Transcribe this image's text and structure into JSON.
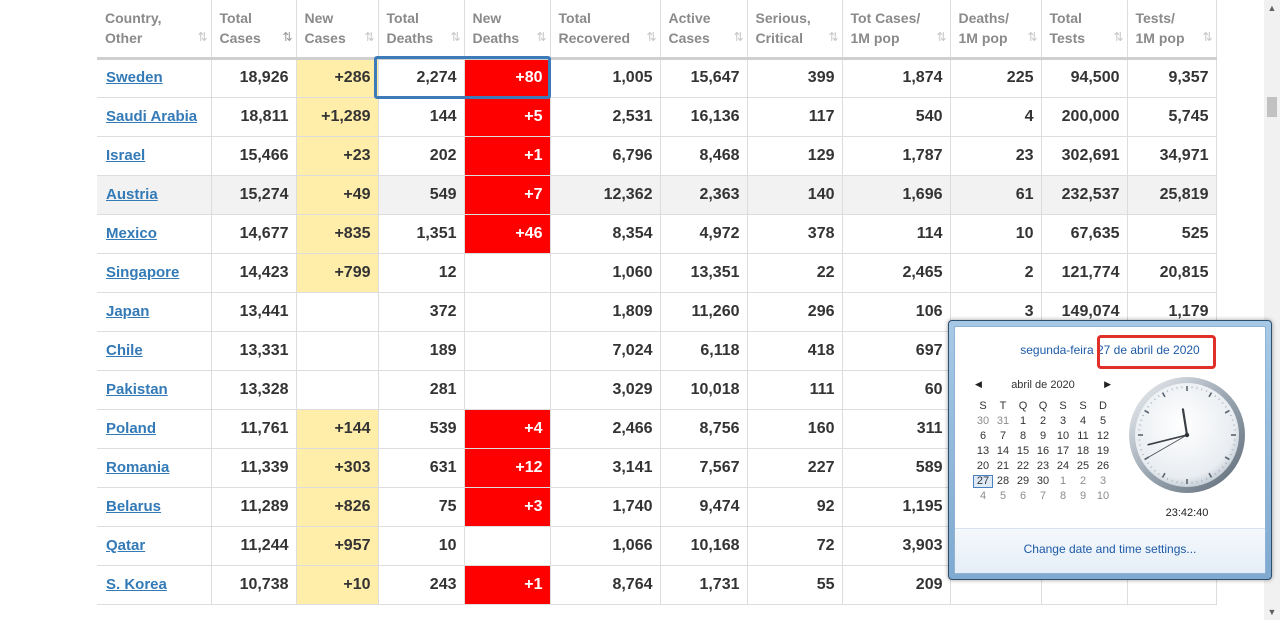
{
  "table": {
    "headers": [
      {
        "line1": "Country,",
        "line2": "Other",
        "sort": "⇅",
        "active": false
      },
      {
        "line1": "Total",
        "line2": "Cases",
        "sort": "⇅",
        "active": true
      },
      {
        "line1": "New",
        "line2": "Cases",
        "sort": "⇅",
        "active": false
      },
      {
        "line1": "Total",
        "line2": "Deaths",
        "sort": "⇅",
        "active": false
      },
      {
        "line1": "New",
        "line2": "Deaths",
        "sort": "⇅",
        "active": false
      },
      {
        "line1": "Total",
        "line2": "Recovered",
        "sort": "⇅",
        "active": false
      },
      {
        "line1": "Active",
        "line2": "Cases",
        "sort": "⇅",
        "active": false
      },
      {
        "line1": "Serious,",
        "line2": "Critical",
        "sort": "⇅",
        "active": false
      },
      {
        "line1": "Tot Cases/",
        "line2": "1M pop",
        "sort": "⇅",
        "active": false
      },
      {
        "line1": "Deaths/",
        "line2": "1M pop",
        "sort": "⇅",
        "active": false
      },
      {
        "line1": "Total",
        "line2": "Tests",
        "sort": "⇅",
        "active": false
      },
      {
        "line1": "Tests/",
        "line2": "1M pop",
        "sort": "⇅",
        "active": false
      }
    ],
    "rows": [
      {
        "country": "Sweden",
        "total_cases": "18,926",
        "new_cases": "+286",
        "total_deaths": "2,274",
        "new_deaths": "+80",
        "total_recovered": "1,005",
        "active_cases": "15,647",
        "serious": "399",
        "cases_per_1m": "1,874",
        "deaths_per_1m": "225",
        "total_tests": "94,500",
        "tests_per_1m": "9,357"
      },
      {
        "country": "Saudi Arabia",
        "total_cases": "18,811",
        "new_cases": "+1,289",
        "total_deaths": "144",
        "new_deaths": "+5",
        "total_recovered": "2,531",
        "active_cases": "16,136",
        "serious": "117",
        "cases_per_1m": "540",
        "deaths_per_1m": "4",
        "total_tests": "200,000",
        "tests_per_1m": "5,745"
      },
      {
        "country": "Israel",
        "total_cases": "15,466",
        "new_cases": "+23",
        "total_deaths": "202",
        "new_deaths": "+1",
        "total_recovered": "6,796",
        "active_cases": "8,468",
        "serious": "129",
        "cases_per_1m": "1,787",
        "deaths_per_1m": "23",
        "total_tests": "302,691",
        "tests_per_1m": "34,971"
      },
      {
        "country": "Austria",
        "total_cases": "15,274",
        "new_cases": "+49",
        "total_deaths": "549",
        "new_deaths": "+7",
        "total_recovered": "12,362",
        "active_cases": "2,363",
        "serious": "140",
        "cases_per_1m": "1,696",
        "deaths_per_1m": "61",
        "total_tests": "232,537",
        "tests_per_1m": "25,819"
      },
      {
        "country": "Mexico",
        "total_cases": "14,677",
        "new_cases": "+835",
        "total_deaths": "1,351",
        "new_deaths": "+46",
        "total_recovered": "8,354",
        "active_cases": "4,972",
        "serious": "378",
        "cases_per_1m": "114",
        "deaths_per_1m": "10",
        "total_tests": "67,635",
        "tests_per_1m": "525"
      },
      {
        "country": "Singapore",
        "total_cases": "14,423",
        "new_cases": "+799",
        "total_deaths": "12",
        "new_deaths": "",
        "total_recovered": "1,060",
        "active_cases": "13,351",
        "serious": "22",
        "cases_per_1m": "2,465",
        "deaths_per_1m": "2",
        "total_tests": "121,774",
        "tests_per_1m": "20,815"
      },
      {
        "country": "Japan",
        "total_cases": "13,441",
        "new_cases": "",
        "total_deaths": "372",
        "new_deaths": "",
        "total_recovered": "1,809",
        "active_cases": "11,260",
        "serious": "296",
        "cases_per_1m": "106",
        "deaths_per_1m": "3",
        "total_tests": "149,074",
        "tests_per_1m": "1,179"
      },
      {
        "country": "Chile",
        "total_cases": "13,331",
        "new_cases": "",
        "total_deaths": "189",
        "new_deaths": "",
        "total_recovered": "7,024",
        "active_cases": "6,118",
        "serious": "418",
        "cases_per_1m": "697",
        "deaths_per_1m": "",
        "total_tests": "",
        "tests_per_1m": ""
      },
      {
        "country": "Pakistan",
        "total_cases": "13,328",
        "new_cases": "",
        "total_deaths": "281",
        "new_deaths": "",
        "total_recovered": "3,029",
        "active_cases": "10,018",
        "serious": "111",
        "cases_per_1m": "60",
        "deaths_per_1m": "",
        "total_tests": "",
        "tests_per_1m": ""
      },
      {
        "country": "Poland",
        "total_cases": "11,761",
        "new_cases": "+144",
        "total_deaths": "539",
        "new_deaths": "+4",
        "total_recovered": "2,466",
        "active_cases": "8,756",
        "serious": "160",
        "cases_per_1m": "311",
        "deaths_per_1m": "",
        "total_tests": "",
        "tests_per_1m": ""
      },
      {
        "country": "Romania",
        "total_cases": "11,339",
        "new_cases": "+303",
        "total_deaths": "631",
        "new_deaths": "+12",
        "total_recovered": "3,141",
        "active_cases": "7,567",
        "serious": "227",
        "cases_per_1m": "589",
        "deaths_per_1m": "",
        "total_tests": "",
        "tests_per_1m": ""
      },
      {
        "country": "Belarus",
        "total_cases": "11,289",
        "new_cases": "+826",
        "total_deaths": "75",
        "new_deaths": "+3",
        "total_recovered": "1,740",
        "active_cases": "9,474",
        "serious": "92",
        "cases_per_1m": "1,195",
        "deaths_per_1m": "",
        "total_tests": "",
        "tests_per_1m": ""
      },
      {
        "country": "Qatar",
        "total_cases": "11,244",
        "new_cases": "+957",
        "total_deaths": "10",
        "new_deaths": "",
        "total_recovered": "1,066",
        "active_cases": "10,168",
        "serious": "72",
        "cases_per_1m": "3,903",
        "deaths_per_1m": "",
        "total_tests": "",
        "tests_per_1m": ""
      },
      {
        "country": "S. Korea",
        "total_cases": "10,738",
        "new_cases": "+10",
        "total_deaths": "243",
        "new_deaths": "+1",
        "total_recovered": "8,764",
        "active_cases": "1,731",
        "serious": "55",
        "cases_per_1m": "209",
        "deaths_per_1m": "",
        "total_tests": "",
        "tests_per_1m": ""
      }
    ]
  },
  "colors": {
    "new_cases_bg": "#ffeeaa",
    "new_deaths_bg": "#ff0000",
    "link": "#337ab7",
    "highlight_blue": "#3d7ab8",
    "highlight_red": "#e0302a"
  },
  "flyout": {
    "weekday": "segunda-feira",
    "date": "27 de abril de 2020",
    "month_label": "abril de 2020",
    "prev_icon": "◀",
    "next_icon": "▶",
    "weekday_headers": [
      "S",
      "T",
      "Q",
      "Q",
      "S",
      "S",
      "D"
    ],
    "days": [
      {
        "d": "30",
        "dim": true
      },
      {
        "d": "31",
        "dim": true
      },
      {
        "d": "1"
      },
      {
        "d": "2"
      },
      {
        "d": "3"
      },
      {
        "d": "4"
      },
      {
        "d": "5"
      },
      {
        "d": "6"
      },
      {
        "d": "7"
      },
      {
        "d": "8"
      },
      {
        "d": "9"
      },
      {
        "d": "10"
      },
      {
        "d": "11"
      },
      {
        "d": "12"
      },
      {
        "d": "13"
      },
      {
        "d": "14"
      },
      {
        "d": "15"
      },
      {
        "d": "16"
      },
      {
        "d": "17"
      },
      {
        "d": "18"
      },
      {
        "d": "19"
      },
      {
        "d": "20"
      },
      {
        "d": "21"
      },
      {
        "d": "22"
      },
      {
        "d": "23"
      },
      {
        "d": "24"
      },
      {
        "d": "25"
      },
      {
        "d": "26"
      },
      {
        "d": "27",
        "today": true
      },
      {
        "d": "28"
      },
      {
        "d": "29"
      },
      {
        "d": "30"
      },
      {
        "d": "1",
        "dim": true
      },
      {
        "d": "2",
        "dim": true
      },
      {
        "d": "3",
        "dim": true
      },
      {
        "d": "4",
        "dim": true
      },
      {
        "d": "5",
        "dim": true
      },
      {
        "d": "6",
        "dim": true
      },
      {
        "d": "7",
        "dim": true
      },
      {
        "d": "8",
        "dim": true
      },
      {
        "d": "9",
        "dim": true
      },
      {
        "d": "10",
        "dim": true
      }
    ],
    "time": "23:42:40",
    "clock": {
      "hours": 23,
      "minutes": 42,
      "seconds": 40
    },
    "settings_link": "Change date and time settings..."
  },
  "scrollbar": {
    "up_icon": "▲",
    "down_icon": "▼"
  }
}
